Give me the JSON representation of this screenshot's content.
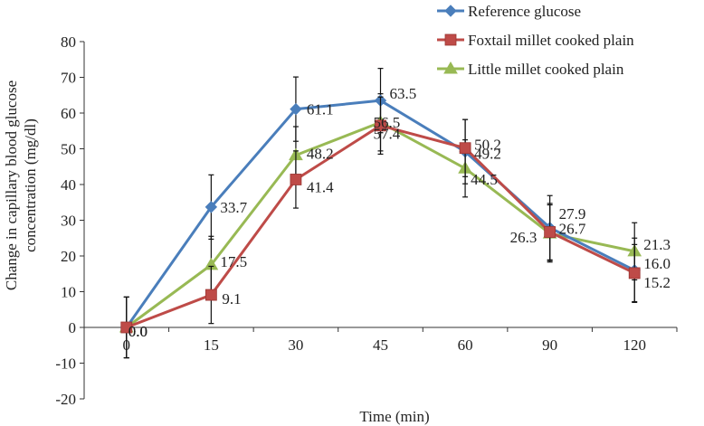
{
  "chart_data": {
    "type": "line",
    "title": "",
    "xlabel": "Time (min)",
    "ylabel": "Change in capillary blood glucose concentration (mg/dl)",
    "ylabel_lines": [
      "Change in capillary blood glucose",
      "concentration (mg/dl)"
    ],
    "categories": [
      "0",
      "15",
      "30",
      "45",
      "60",
      "90",
      "120"
    ],
    "yticks": [
      "-20",
      "-10",
      "0",
      "10",
      "20",
      "30",
      "40",
      "50",
      "60",
      "70",
      "80"
    ],
    "ylim": [
      -20,
      80
    ],
    "grid": false,
    "legend_position": "top-right",
    "series": [
      {
        "name": "Reference glucose",
        "color": "#4a7ebb",
        "marker": "diamond",
        "values": [
          0,
          33.7,
          61.1,
          63.5,
          49.2,
          27.9,
          16.0
        ],
        "labels": [
          "0.0",
          "33.7",
          "61.1",
          "63.5",
          "49.2",
          "27.9",
          "16.0"
        ],
        "error": [
          8.5,
          9,
          9,
          9,
          9,
          9,
          9
        ]
      },
      {
        "name": "Foxtail millet cooked plain",
        "color": "#be4b48",
        "marker": "square",
        "values": [
          0,
          9.1,
          41.4,
          56.5,
          50.2,
          26.7,
          15.2
        ],
        "labels": [
          "0.0",
          "9.1",
          "41.4",
          "56.5",
          "50.2",
          "26.7",
          "15.2"
        ],
        "error": [
          8.5,
          8,
          8,
          8,
          8,
          8,
          8
        ]
      },
      {
        "name": "Little millet cooked plain",
        "color": "#98b954",
        "marker": "triangle",
        "values": [
          0,
          17.5,
          48.2,
          57.4,
          44.5,
          26.3,
          21.3
        ],
        "labels": [
          "0.0",
          "17.5",
          "48.2",
          "57.4",
          "44.5",
          "26.3",
          "21.3"
        ],
        "error": [
          8.5,
          8,
          8,
          8,
          8,
          8,
          8
        ]
      }
    ]
  }
}
